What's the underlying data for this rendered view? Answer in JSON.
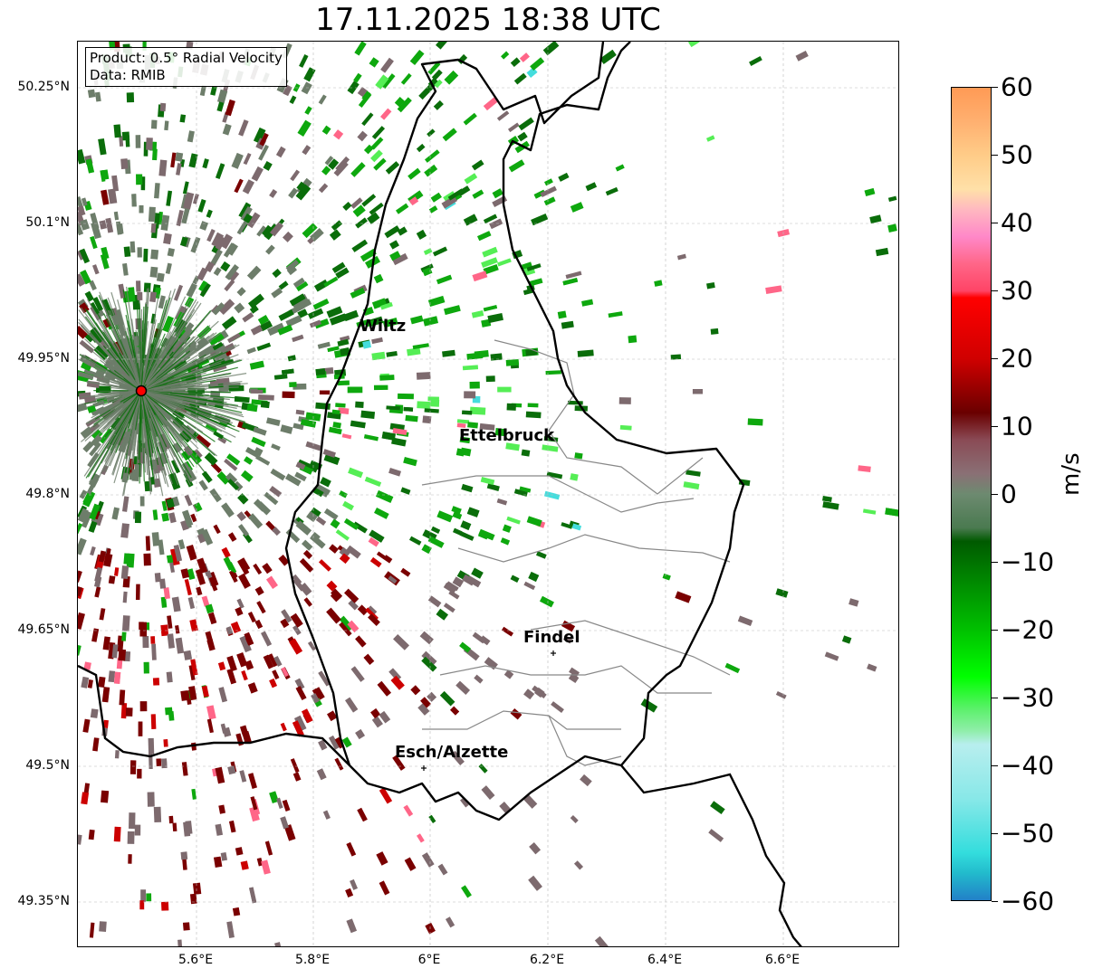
{
  "title": "17.11.2025 18:38 UTC",
  "info": {
    "product": "Product: 0.5° Radial Velocity",
    "source": "Data: RMIB"
  },
  "y_ticks": [
    "50.25°N",
    "50.1°N",
    "49.95°N",
    "49.8°N",
    "49.65°N",
    "49.5°N",
    "49.35°N"
  ],
  "x_ticks": [
    "5.6°E",
    "5.8°E",
    "6°E",
    "6.2°E",
    "6.4°E",
    "6.6°E"
  ],
  "cities": [
    {
      "name": "Wiltz"
    },
    {
      "name": "Ettelbruck"
    },
    {
      "name": "Findel"
    },
    {
      "name": "Esch/Alzette"
    }
  ],
  "colorbar": {
    "unit": "m/s",
    "ticks": [
      "60",
      "50",
      "40",
      "30",
      "20",
      "10",
      "0",
      "−10",
      "−20",
      "−30",
      "−40",
      "−50",
      "−60"
    ],
    "range": [
      -60,
      60
    ]
  },
  "palette": {
    "red_dark": "#7a0000",
    "red": "#cc0000",
    "grey_pos": "#7d6a6e",
    "grey_neg": "#6d7d6a",
    "green_dark": "#0a6d0a",
    "green": "#0ea80e",
    "green_light": "#55ee55",
    "cyan": "#44dddd",
    "pink": "#ff6688",
    "border": "#000000",
    "canton": "#888888"
  }
}
